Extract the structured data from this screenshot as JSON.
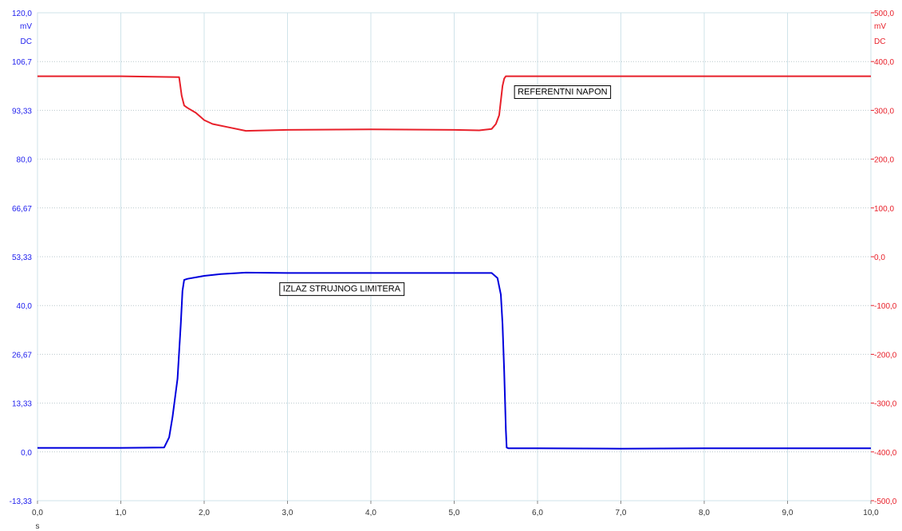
{
  "chart_data": {
    "type": "line",
    "xlabel": "s",
    "xlim": [
      0,
      10
    ],
    "x_ticks": [
      "0,0",
      "1,0",
      "2,0",
      "3,0",
      "4,0",
      "5,0",
      "6,0",
      "7,0",
      "8,0",
      "9,0",
      "10,0"
    ],
    "grid": true,
    "left_axis": {
      "unit": "mV",
      "coupling": "DC",
      "ylim": [
        -13.33,
        120.0
      ],
      "ticks": [
        "-13,33",
        "0,0",
        "13,33",
        "26,67",
        "40,0",
        "53,33",
        "66,67",
        "80,0",
        "93,33",
        "106,7",
        "120,0"
      ],
      "color": "#2020ee"
    },
    "right_axis": {
      "unit": "mV",
      "coupling": "DC",
      "ylim": [
        -500.0,
        500.0
      ],
      "ticks": [
        "-500,0",
        "-400,0",
        "-300,0",
        "-200,0",
        "-100,0",
        "0,0",
        "100,0",
        "200,0",
        "300,0",
        "400,0",
        "500,0"
      ],
      "color": "#e8202a"
    },
    "series": [
      {
        "name": "IZLAZ STRUJNOG LIMITERA",
        "axis": "left",
        "color": "#0000dd",
        "x": [
          0.0,
          1.0,
          1.52,
          1.58,
          1.62,
          1.68,
          1.72,
          1.74,
          1.76,
          1.8,
          2.0,
          2.2,
          2.5,
          3.0,
          4.0,
          5.0,
          5.45,
          5.52,
          5.56,
          5.58,
          5.6,
          5.62,
          5.63,
          5.65,
          6.0,
          7.0,
          8.0,
          9.0,
          10.0
        ],
        "y": [
          1.1,
          1.1,
          1.2,
          4.0,
          9.5,
          20.0,
          35.0,
          44.0,
          47.0,
          47.3,
          48.1,
          48.6,
          49.0,
          48.9,
          48.9,
          48.9,
          48.9,
          47.5,
          43.0,
          35.0,
          22.0,
          6.0,
          1.2,
          1.0,
          1.0,
          0.9,
          1.0,
          1.0,
          1.0
        ]
      },
      {
        "name": "REFERENTNI NAPON",
        "axis": "right",
        "color": "#e8202a",
        "x": [
          0.0,
          1.0,
          1.7,
          1.73,
          1.76,
          1.8,
          1.9,
          2.0,
          2.1,
          2.3,
          2.5,
          3.0,
          4.0,
          5.0,
          5.3,
          5.45,
          5.5,
          5.54,
          5.56,
          5.58,
          5.6,
          5.62,
          5.65,
          6.0,
          7.0,
          8.0,
          9.0,
          10.0
        ],
        "y": [
          370,
          370,
          368,
          330,
          310,
          305,
          295,
          280,
          272,
          265,
          258,
          260,
          261,
          260,
          259,
          262,
          272,
          290,
          320,
          350,
          365,
          370,
          370,
          370,
          370,
          370,
          370,
          370
        ]
      }
    ],
    "annotations": [
      {
        "text": "REFERENTNI NAPON",
        "x": 6.3,
        "y_axis": "right",
        "y": 339
      },
      {
        "text": "IZLAZ STRUJNOG LIMITERA",
        "x": 3.65,
        "y_axis": "left",
        "y": 44.7
      }
    ]
  }
}
